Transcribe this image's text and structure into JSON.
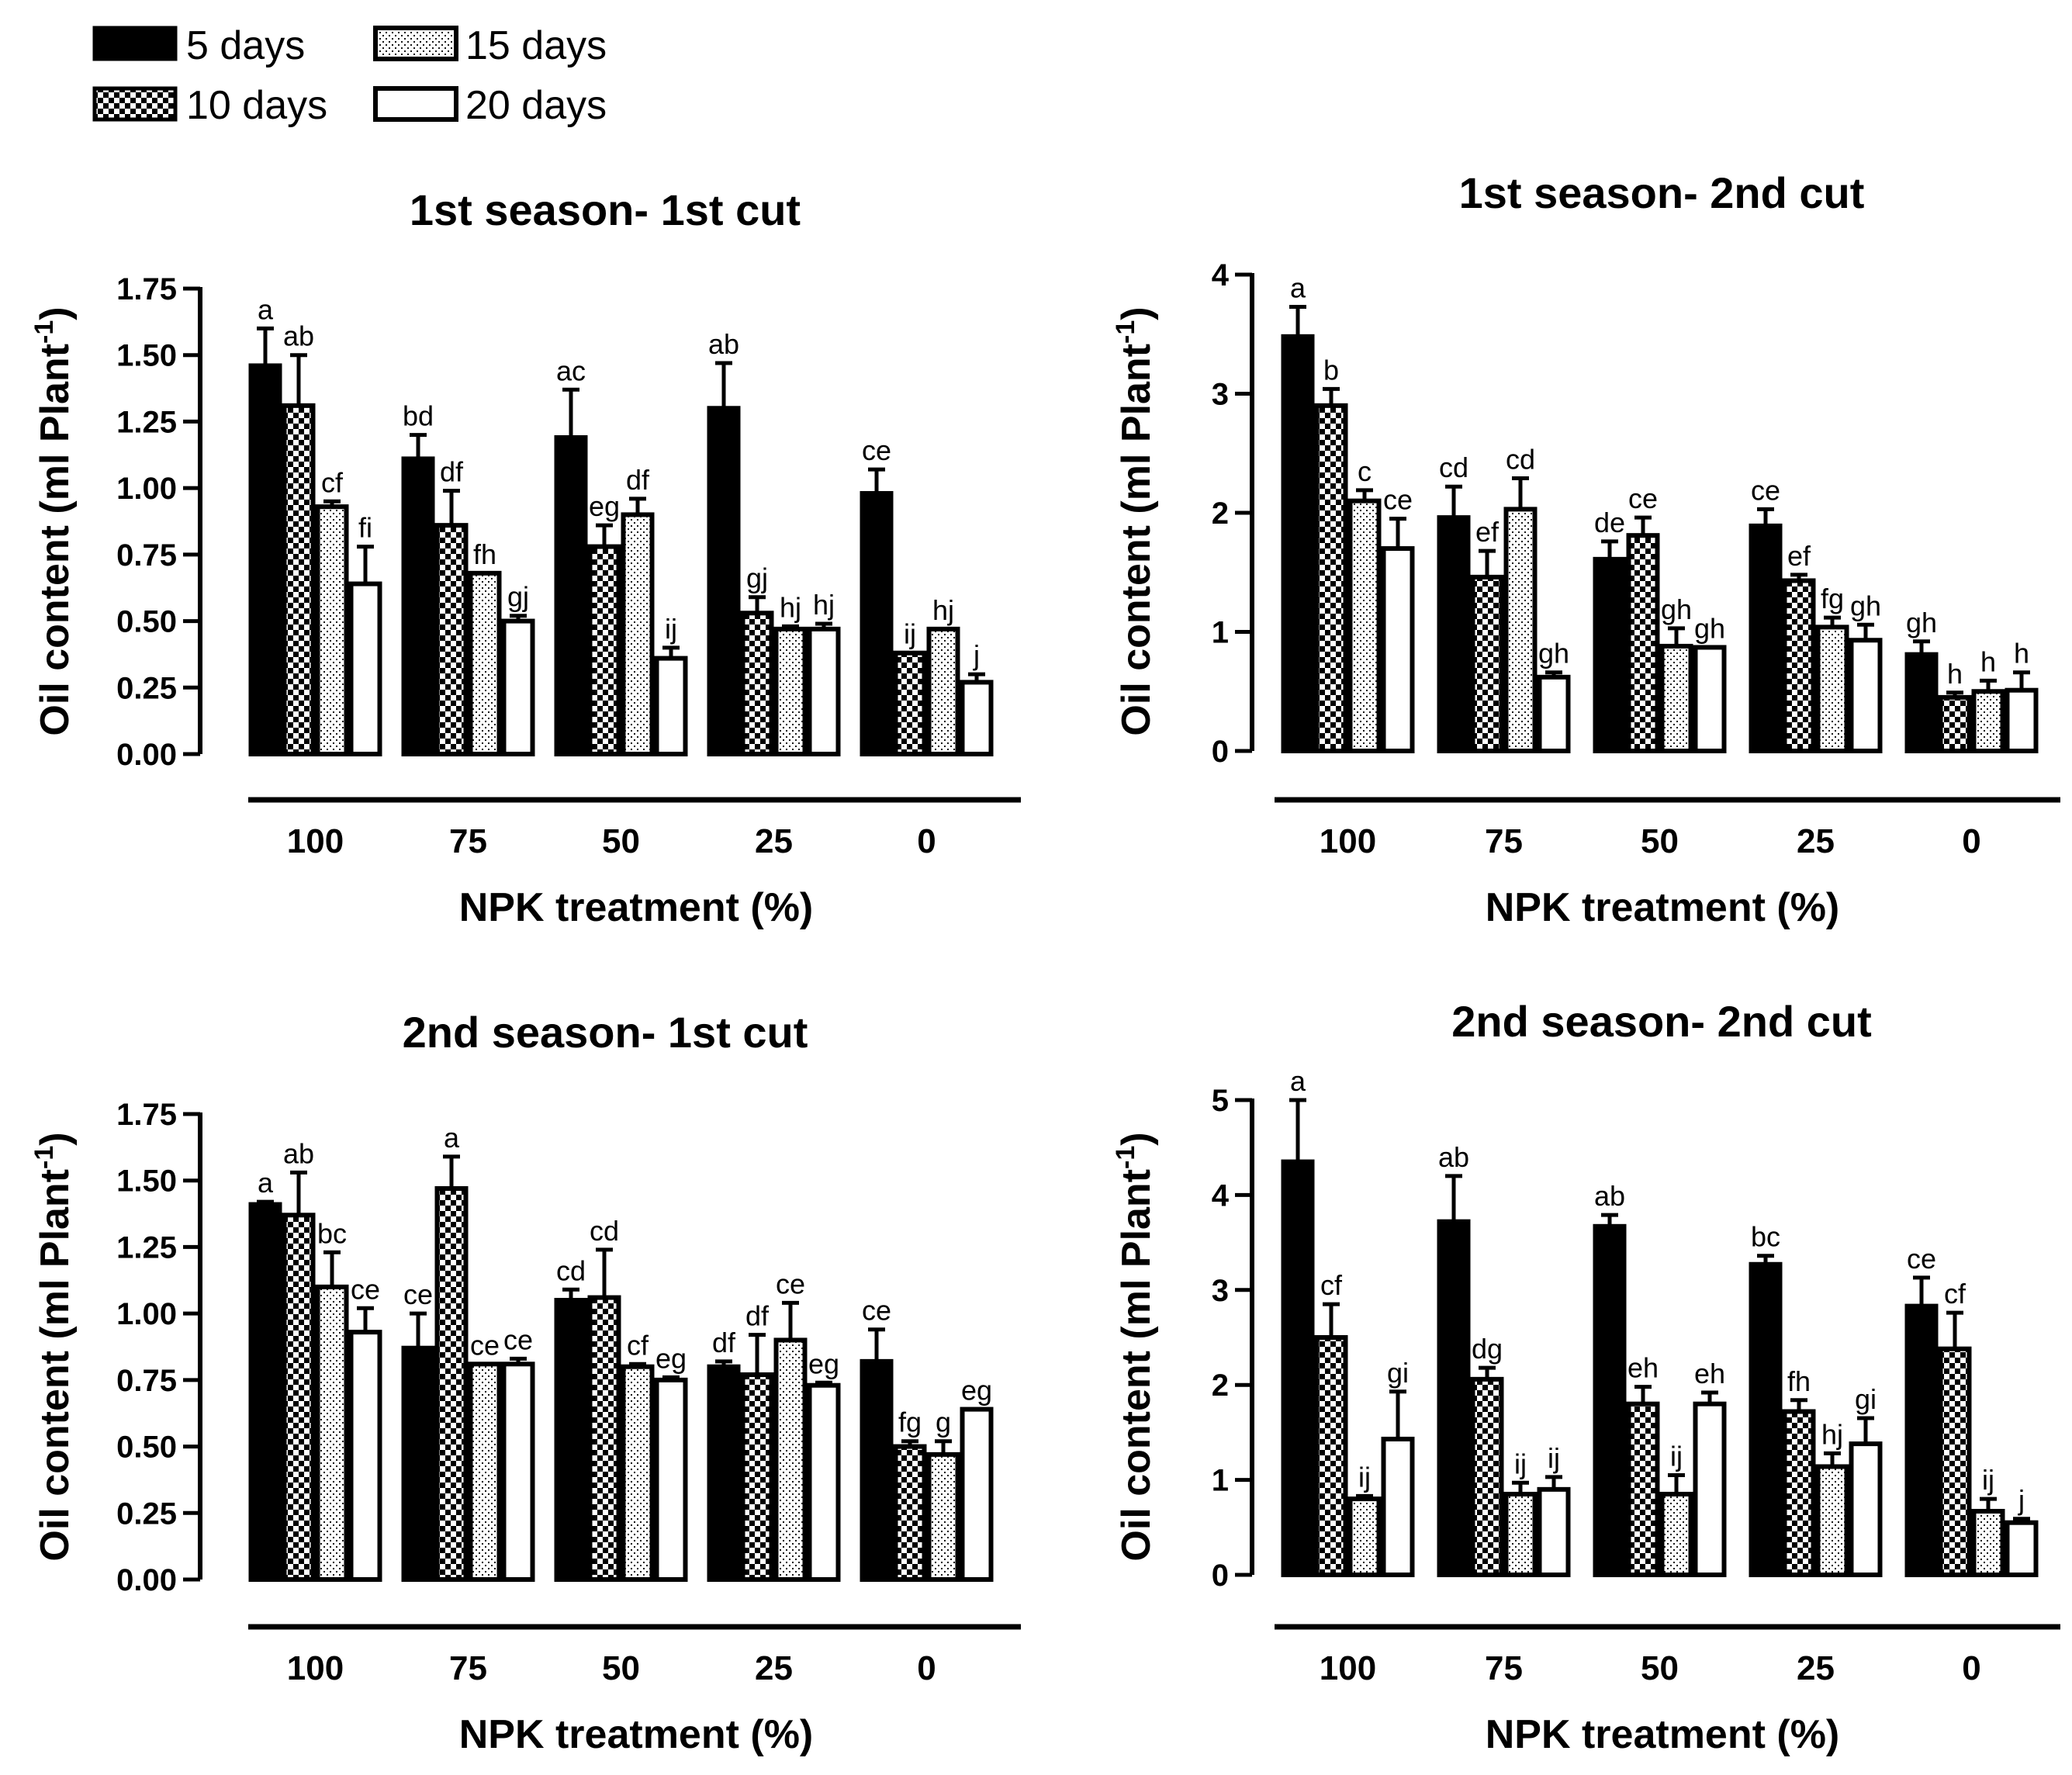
{
  "colors": {
    "ink": "#000000",
    "background": "#ffffff"
  },
  "legend": [
    {
      "label": "5 days",
      "pattern": "solid"
    },
    {
      "label": "15 days",
      "pattern": "dots"
    },
    {
      "label": "10 days",
      "pattern": "checker"
    },
    {
      "label": "20 days",
      "pattern": "empty"
    }
  ],
  "chart_data": [
    {
      "type": "bar",
      "title": "1st season- 1st cut",
      "ylabel": "Oil content  (ml Plant",
      "ylabel_sup": "-1",
      "ylabel_close": ")",
      "xlabel": "NPK treatment (%)",
      "ylim": [
        0,
        1.75
      ],
      "yticks": [
        0,
        0.25,
        0.5,
        0.75,
        1.0,
        1.25,
        1.5,
        1.75
      ],
      "ytick_labels": [
        "0.00",
        "0.25",
        "0.50",
        "0.75",
        "1.00",
        "1.25",
        "1.50",
        "1.75"
      ],
      "categories": [
        "100",
        "75",
        "50",
        "25",
        "0"
      ],
      "series": [
        {
          "name": "5 days",
          "values": [
            1.46,
            1.11,
            1.19,
            1.3,
            0.98
          ],
          "errors": [
            0.14,
            0.09,
            0.18,
            0.17,
            0.09
          ],
          "letters": [
            "a",
            "bd",
            "ac",
            "ab",
            "ce"
          ]
        },
        {
          "name": "10 days",
          "values": [
            1.31,
            0.86,
            0.78,
            0.53,
            0.38
          ],
          "errors": [
            0.19,
            0.13,
            0.08,
            0.06,
            0.0
          ],
          "letters": [
            "ab",
            "df",
            "eg",
            "gj",
            "ij"
          ]
        },
        {
          "name": "15 days",
          "values": [
            0.93,
            0.68,
            0.9,
            0.47,
            0.47
          ],
          "errors": [
            0.02,
            0.0,
            0.06,
            0.01,
            0.0
          ],
          "letters": [
            "cf",
            "fh",
            "df",
            "hj",
            "hj"
          ]
        },
        {
          "name": "20 days",
          "values": [
            0.64,
            0.5,
            0.36,
            0.47,
            0.27
          ],
          "errors": [
            0.14,
            0.02,
            0.04,
            0.02,
            0.03
          ],
          "letters": [
            "fi",
            "gj",
            "ij",
            "hj",
            "j"
          ]
        }
      ]
    },
    {
      "type": "bar",
      "title": "1st season- 2nd cut",
      "ylabel": "Oil content  (ml Plant",
      "ylabel_sup": "-1",
      "ylabel_close": ")",
      "xlabel": "NPK treatment (%)",
      "ylim": [
        0,
        4
      ],
      "yticks": [
        0,
        1,
        2,
        3,
        4
      ],
      "ytick_labels": [
        "0",
        "1",
        "2",
        "3",
        "4"
      ],
      "categories": [
        "100",
        "75",
        "50",
        "25",
        "0"
      ],
      "series": [
        {
          "name": "5 days",
          "values": [
            3.48,
            1.96,
            1.61,
            1.89,
            0.81
          ],
          "errors": [
            0.25,
            0.26,
            0.15,
            0.14,
            0.11
          ],
          "letters": [
            "a",
            "cd",
            "de",
            "ce",
            "gh"
          ]
        },
        {
          "name": "10 days",
          "values": [
            2.9,
            1.46,
            1.81,
            1.43,
            0.45
          ],
          "errors": [
            0.14,
            0.22,
            0.15,
            0.05,
            0.04
          ],
          "letters": [
            "b",
            "ef",
            "ce",
            "ef",
            "h"
          ]
        },
        {
          "name": "15 days",
          "values": [
            2.1,
            2.03,
            0.88,
            1.04,
            0.5
          ],
          "errors": [
            0.09,
            0.26,
            0.15,
            0.08,
            0.09
          ],
          "letters": [
            "c",
            "cd",
            "gh",
            "fg",
            "h"
          ]
        },
        {
          "name": "20 days",
          "values": [
            1.7,
            0.62,
            0.87,
            0.93,
            0.51
          ],
          "errors": [
            0.25,
            0.04,
            0.0,
            0.13,
            0.15
          ],
          "letters": [
            "ce",
            "gh",
            "gh",
            "gh",
            "h"
          ]
        }
      ]
    },
    {
      "type": "bar",
      "title": "2nd season- 1st cut",
      "ylabel": "Oil content  (ml Plant",
      "ylabel_sup": "-1",
      "ylabel_close": ")",
      "xlabel": "NPK treatment (%)",
      "ylim": [
        0,
        1.75
      ],
      "yticks": [
        0,
        0.25,
        0.5,
        0.75,
        1.0,
        1.25,
        1.5,
        1.75
      ],
      "ytick_labels": [
        "0.00",
        "0.25",
        "0.50",
        "0.75",
        "1.00",
        "1.25",
        "1.50",
        "1.75"
      ],
      "categories": [
        "100",
        "75",
        "50",
        "25",
        "0"
      ],
      "series": [
        {
          "name": "5 days",
          "values": [
            1.41,
            0.87,
            1.05,
            0.8,
            0.82
          ],
          "errors": [
            0.01,
            0.13,
            0.04,
            0.02,
            0.12
          ],
          "letters": [
            "a",
            "ce",
            "cd",
            "df",
            "ce"
          ]
        },
        {
          "name": "10 days",
          "values": [
            1.37,
            1.47,
            1.06,
            0.77,
            0.5
          ],
          "errors": [
            0.16,
            0.12,
            0.18,
            0.15,
            0.02
          ],
          "letters": [
            "ab",
            "a",
            "cd",
            "df",
            "fg"
          ]
        },
        {
          "name": "15 days",
          "values": [
            1.1,
            0.81,
            0.8,
            0.9,
            0.47
          ],
          "errors": [
            0.13,
            0.0,
            0.01,
            0.14,
            0.05
          ],
          "letters": [
            "bc",
            "ce",
            "cf",
            "ce",
            "g"
          ]
        },
        {
          "name": "20 days",
          "values": [
            0.93,
            0.81,
            0.75,
            0.73,
            0.64
          ],
          "errors": [
            0.09,
            0.02,
            0.01,
            0.01,
            0.0
          ],
          "letters": [
            "ce",
            "ce",
            "eg",
            "eg",
            "eg"
          ]
        }
      ]
    },
    {
      "type": "bar",
      "title": "2nd season- 2nd cut",
      "ylabel": "Oil content  (ml Plant",
      "ylabel_sup": "-1",
      "ylabel_close": ")",
      "xlabel": "NPK treatment (%)",
      "ylim": [
        0,
        5
      ],
      "yticks": [
        0,
        1,
        2,
        3,
        4,
        5
      ],
      "ytick_labels": [
        "0",
        "1",
        "2",
        "3",
        "4",
        "5"
      ],
      "categories": [
        "100",
        "75",
        "50",
        "25",
        "0"
      ],
      "series": [
        {
          "name": "5 days",
          "values": [
            4.35,
            3.72,
            3.67,
            3.27,
            2.83
          ],
          "errors": [
            0.65,
            0.48,
            0.12,
            0.09,
            0.3
          ],
          "letters": [
            "a",
            "ab",
            "ab",
            "bc",
            "ce"
          ]
        },
        {
          "name": "10 days",
          "values": [
            2.5,
            2.06,
            1.8,
            1.72,
            2.38
          ],
          "errors": [
            0.35,
            0.12,
            0.18,
            0.12,
            0.38
          ],
          "letters": [
            "cf",
            "dg",
            "eh",
            "fh",
            "cf"
          ]
        },
        {
          "name": "15 days",
          "values": [
            0.8,
            0.85,
            0.85,
            1.14,
            0.67
          ],
          "errors": [
            0.03,
            0.12,
            0.2,
            0.14,
            0.13
          ],
          "letters": [
            "ij",
            "ij",
            "ij",
            "hj",
            "ij"
          ]
        },
        {
          "name": "20 days",
          "values": [
            1.43,
            0.9,
            1.8,
            1.38,
            0.55
          ],
          "errors": [
            0.5,
            0.13,
            0.12,
            0.27,
            0.04
          ],
          "letters": [
            "gi",
            "ij",
            "eh",
            "gi",
            "j"
          ]
        }
      ]
    }
  ]
}
